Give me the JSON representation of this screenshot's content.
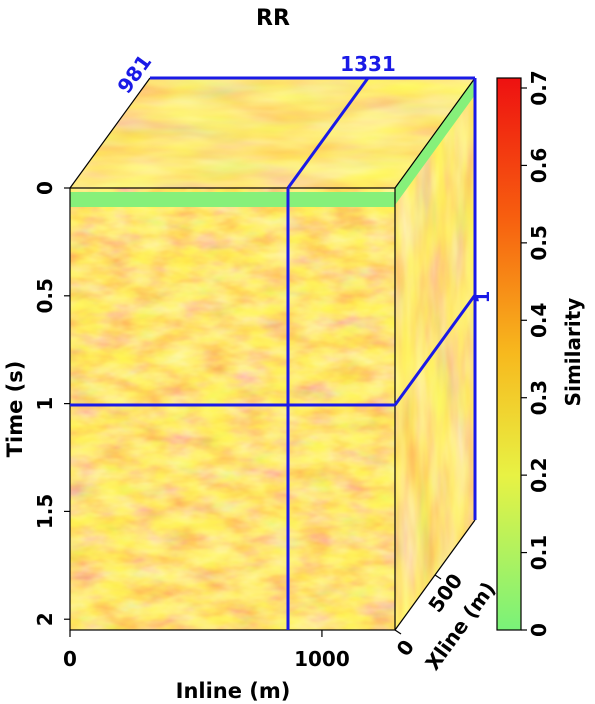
{
  "chart_data": {
    "type": "heatmap",
    "title": "RR",
    "xlabel": "Inline (m)",
    "ylabel": "Time (s)",
    "zlabel": "Xline (m)",
    "x_ticks": [
      "0",
      "1000"
    ],
    "x_tick_values": [
      0,
      1000
    ],
    "xlim": [
      0,
      1290
    ],
    "y_ticks": [
      "0",
      "0.5",
      "1",
      "1.5",
      "2"
    ],
    "y_tick_values": [
      0,
      0.5,
      1,
      1.5,
      2
    ],
    "ylim": [
      0,
      2.05
    ],
    "z_ticks": [
      "0",
      "500"
    ],
    "z_tick_values": [
      0,
      500
    ],
    "zlim": [
      0,
      1000
    ],
    "slices": {
      "inline_marker_label": "1331",
      "inline_top_label": "981",
      "xline_marker_label": "1",
      "time_marker": 1.0,
      "inline_marker_m": 850,
      "xline_marker_m": 500
    },
    "colorbar": {
      "label": "Similarity",
      "ticks": [
        "0",
        "0.1",
        "0.2",
        "0.3",
        "0.4",
        "0.5",
        "0.6",
        "0.7"
      ],
      "tick_values": [
        0,
        0.1,
        0.2,
        0.3,
        0.4,
        0.5,
        0.6,
        0.7
      ],
      "range": [
        0,
        0.7
      ],
      "colors": [
        "#79f279",
        "#e8f244",
        "#f7b91e",
        "#f75e0f",
        "#ee1111"
      ]
    },
    "accent_color": "#1a1ae6"
  }
}
